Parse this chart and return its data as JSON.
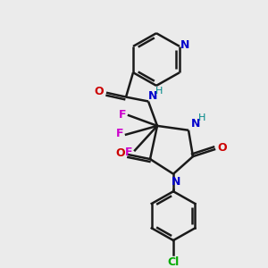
{
  "background_color": "#ebebeb",
  "bond_color": "#1a1a1a",
  "N_color": "#0000cc",
  "O_color": "#cc0000",
  "F_color": "#cc00cc",
  "Cl_color": "#00aa00",
  "H_color": "#008888",
  "figsize": [
    3.0,
    3.0
  ],
  "dpi": 100,
  "xlim": [
    0,
    300
  ],
  "ylim": [
    0,
    300
  ]
}
